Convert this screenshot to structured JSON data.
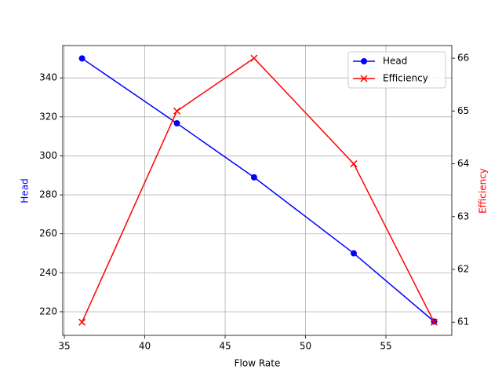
{
  "chart_data": {
    "type": "line",
    "x_label": "Flow Rate",
    "y_label": "Head",
    "y2_label": "Efficiency",
    "x": [
      36.1,
      42.0,
      46.8,
      53.0,
      58.0
    ],
    "series": [
      {
        "name": "Head",
        "color": "#0000ff",
        "marker": "o",
        "values": [
          350,
          316.7,
          289,
          250,
          215
        ]
      },
      {
        "name": "Efficiency",
        "color": "#ff0000",
        "marker": "x",
        "axis": "y2",
        "values": [
          61,
          65,
          66,
          64,
          61
        ]
      }
    ],
    "xlim": [
      34.9,
      59.1
    ],
    "xticks": [
      35,
      40,
      45,
      50,
      55
    ],
    "ylim": [
      207.9,
      356.6
    ],
    "yticks": [
      220,
      240,
      260,
      280,
      300,
      320,
      340
    ],
    "y2lim": [
      60.75,
      66.24
    ],
    "y2ticks": [
      61,
      62,
      63,
      64,
      65,
      66
    ],
    "grid": true,
    "legend": "upper right"
  }
}
